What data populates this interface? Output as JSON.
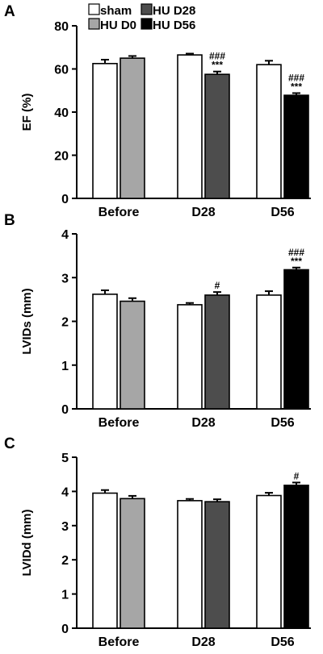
{
  "legend": {
    "entries": [
      {
        "label": "sham",
        "color": "#ffffff"
      },
      {
        "label": "HU D0",
        "color": "#a6a6a6"
      },
      {
        "label": "HU D28",
        "color": "#4d4d4d"
      },
      {
        "label": "HU D56",
        "color": "#000000"
      }
    ]
  },
  "colors": {
    "sham": "#ffffff",
    "hu_d0": "#a6a6a6",
    "hu_d28": "#4d4d4d",
    "hu_d56": "#000000",
    "axis": "#000000"
  },
  "chart_data": [
    {
      "panel": "A",
      "type": "bar",
      "ylabel": "EF (%)",
      "ylim": [
        0,
        80
      ],
      "yticks": [
        0,
        20,
        40,
        60,
        80
      ],
      "categories": [
        "Before",
        "D28",
        "D56"
      ],
      "bars": [
        {
          "group": "Before",
          "series": "sham",
          "value": 62.5,
          "error": 1.8,
          "color": "#ffffff"
        },
        {
          "group": "Before",
          "series": "HU D0",
          "value": 65.0,
          "error": 1.0,
          "color": "#a6a6a6"
        },
        {
          "group": "D28",
          "series": "sham",
          "value": 66.5,
          "error": 0.6,
          "color": "#ffffff"
        },
        {
          "group": "D28",
          "series": "HU D28",
          "value": 57.5,
          "error": 1.3,
          "color": "#4d4d4d",
          "annotations": [
            "###",
            "***"
          ]
        },
        {
          "group": "D56",
          "series": "sham",
          "value": 62.0,
          "error": 1.8,
          "color": "#ffffff"
        },
        {
          "group": "D56",
          "series": "HU D56",
          "value": 47.8,
          "error": 1.0,
          "color": "#000000",
          "annotations": [
            "###",
            "***"
          ]
        }
      ]
    },
    {
      "panel": "B",
      "type": "bar",
      "ylabel": "LVIDs (mm)",
      "ylim": [
        0,
        4
      ],
      "yticks": [
        0,
        1,
        2,
        3,
        4
      ],
      "categories": [
        "Before",
        "D28",
        "D56"
      ],
      "bars": [
        {
          "group": "Before",
          "series": "sham",
          "value": 2.62,
          "error": 0.09,
          "color": "#ffffff"
        },
        {
          "group": "Before",
          "series": "HU D0",
          "value": 2.46,
          "error": 0.07,
          "color": "#a6a6a6"
        },
        {
          "group": "D28",
          "series": "sham",
          "value": 2.38,
          "error": 0.04,
          "color": "#ffffff"
        },
        {
          "group": "D28",
          "series": "HU D28",
          "value": 2.6,
          "error": 0.07,
          "color": "#4d4d4d",
          "annotations": [
            "#"
          ]
        },
        {
          "group": "D56",
          "series": "sham",
          "value": 2.6,
          "error": 0.09,
          "color": "#ffffff"
        },
        {
          "group": "D56",
          "series": "HU D56",
          "value": 3.18,
          "error": 0.05,
          "color": "#000000",
          "annotations": [
            "###",
            "***"
          ]
        }
      ]
    },
    {
      "panel": "C",
      "type": "bar",
      "ylabel": "LVIDd (mm)",
      "ylim": [
        0,
        5
      ],
      "yticks": [
        0,
        1,
        2,
        3,
        4,
        5
      ],
      "categories": [
        "Before",
        "D28",
        "D56"
      ],
      "bars": [
        {
          "group": "Before",
          "series": "sham",
          "value": 3.95,
          "error": 0.09,
          "color": "#ffffff"
        },
        {
          "group": "Before",
          "series": "HU D0",
          "value": 3.79,
          "error": 0.08,
          "color": "#a6a6a6"
        },
        {
          "group": "D28",
          "series": "sham",
          "value": 3.73,
          "error": 0.05,
          "color": "#ffffff"
        },
        {
          "group": "D28",
          "series": "HU D28",
          "value": 3.7,
          "error": 0.07,
          "color": "#4d4d4d"
        },
        {
          "group": "D56",
          "series": "sham",
          "value": 3.88,
          "error": 0.08,
          "color": "#ffffff"
        },
        {
          "group": "D56",
          "series": "HU D56",
          "value": 4.18,
          "error": 0.08,
          "color": "#000000",
          "annotations": [
            "#"
          ]
        }
      ]
    }
  ]
}
